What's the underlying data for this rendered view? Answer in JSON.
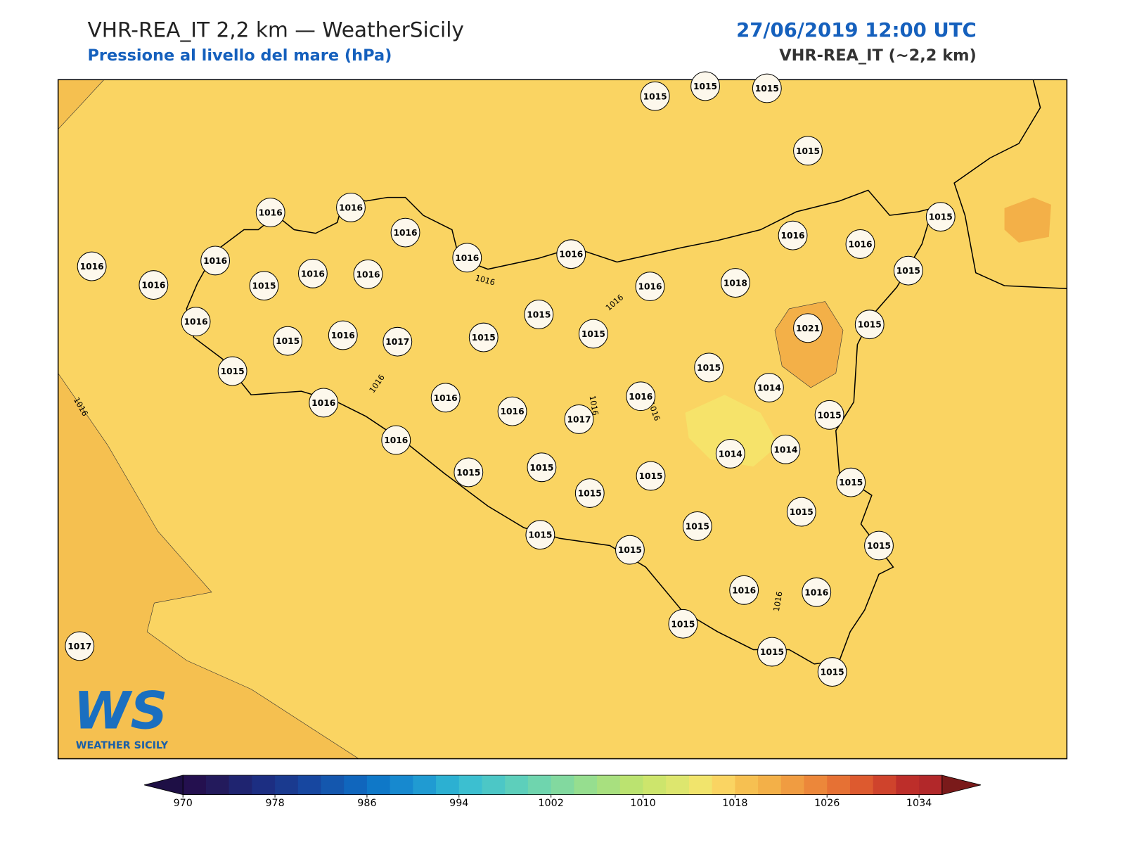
{
  "header": {
    "title": "VHR-REA_IT 2,2 km — WeatherSicily",
    "subtitle": "Pressione al livello del mare (hPa)",
    "datetime": "27/06/2019 12:00 UTC",
    "model": "VHR-REA_IT (~2,2 km)"
  },
  "map": {
    "background_color": "#fad462",
    "low_field_color": "#f5c050",
    "stations": [
      1015,
      1015,
      1015,
      1015,
      1016,
      1016,
      1016,
      1016,
      1016,
      1016,
      1015,
      1016,
      1016,
      1016,
      1016,
      1016,
      1016,
      1015,
      1015,
      1016,
      1018,
      1016,
      1015,
      1016,
      1017,
      1015,
      1015,
      1015,
      1021,
      1015,
      1015,
      1015,
      1014,
      1016,
      1016,
      1016,
      1017,
      1016,
      1015,
      1016,
      1014,
      1014,
      1015,
      1015,
      1015,
      1015,
      1015,
      1015,
      1015,
      1015,
      1015,
      1015,
      1016,
      1016,
      1015,
      1017,
      1015,
      1015
    ],
    "contour_labels": [
      1016,
      1016,
      1016,
      1016,
      1016,
      1016,
      1016
    ]
  },
  "logo": {
    "mark": "WS",
    "text": "WEATHER SICILY"
  },
  "colorbar": {
    "range": [
      970,
      1036
    ],
    "ticks": [
      970,
      978,
      986,
      994,
      1002,
      1010,
      1018,
      1026,
      1034
    ],
    "colors": [
      "#24104f",
      "#231a5c",
      "#1f2470",
      "#1c2e82",
      "#1a3a8f",
      "#1747a0",
      "#1457ae",
      "#1066bd",
      "#0f78c8",
      "#1789cf",
      "#209bd2",
      "#2cb0d2",
      "#3cbfd0",
      "#4cc7c6",
      "#5dcfbb",
      "#6fd5ae",
      "#82d99f",
      "#96de8f",
      "#a8e07f",
      "#bbe370",
      "#cde56c",
      "#dde66e",
      "#f1e46c",
      "#fad462",
      "#f6c051",
      "#f3b048",
      "#f09c41",
      "#ec873a",
      "#e67134",
      "#dd5a2f",
      "#cf432c",
      "#bd2e2a",
      "#b2282a"
    ],
    "under_color": "#1e0f45",
    "over_color": "#7a1a1a"
  }
}
